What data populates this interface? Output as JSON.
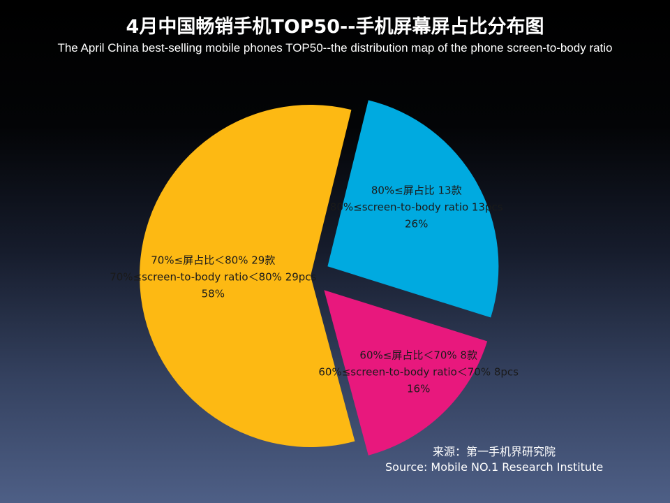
{
  "title": "4月中国畅销手机TOP50--手机屏幕屏占比分布图",
  "subtitle": "The April China best-selling mobile phones TOP50--the distribution map of the phone screen-to-body ratio",
  "source_cn": "来源：第一手机界研究院",
  "source_en": "Source: Mobile NO.1 Research Institute",
  "chart_data": {
    "type": "pie",
    "title": "4月中国畅销手机TOP50--手机屏幕屏占比分布图",
    "subtitle": "The April China best-selling mobile phones TOP50--the distribution map of the phone screen-to-body ratio",
    "slices": [
      {
        "line_cn": "70%≤屏占比＜80% 29款",
        "line_en": "70%≤screen-to-body ratio＜80% 29pcs",
        "count": 29,
        "percent": "58%",
        "value": 58,
        "color": "#FDB913"
      },
      {
        "line_cn": "80%≤屏占比 13款",
        "line_en": "80%≤screen-to-body ratio 13pcs",
        "count": 13,
        "percent": "26%",
        "value": 26,
        "color": "#00AAE0"
      },
      {
        "line_cn": "60%≤屏占比＜70% 8款",
        "line_en": "60%≤screen-to-body ratio＜70% 8pcs",
        "count": 8,
        "percent": "16%",
        "value": 16,
        "color": "#E8187D"
      }
    ],
    "legend": "none",
    "exploded": true
  }
}
